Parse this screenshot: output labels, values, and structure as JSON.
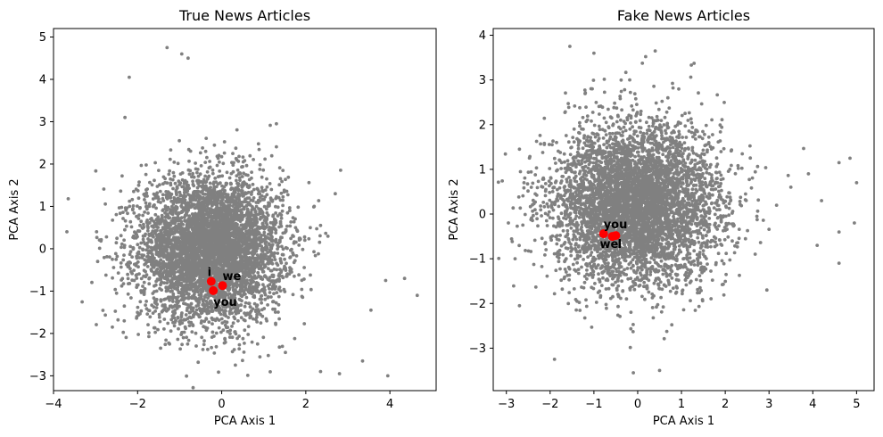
{
  "chart_data": [
    {
      "type": "scatter",
      "title": "True News Articles",
      "xlabel": "PCA Axis 1",
      "ylabel": "PCA Axis 2",
      "xlim": [
        -4,
        5.1
      ],
      "ylim": [
        -3.35,
        5.2
      ],
      "xticks": [
        -4,
        -2,
        0,
        2,
        4
      ],
      "yticks": [
        -3,
        -2,
        -1,
        0,
        1,
        2,
        3,
        4,
        5
      ],
      "grid": false,
      "cloud": {
        "name": "articles",
        "color": "#808080",
        "center": [
          -0.25,
          0.0
        ],
        "spread": [
          0.85,
          0.85
        ],
        "count": 5200,
        "points": [
          [
            -3.65,
            1.18
          ],
          [
            -2.95,
            -0.3
          ],
          [
            -2.6,
            -1.85
          ],
          [
            -2.3,
            3.1
          ],
          [
            -2.2,
            4.05
          ],
          [
            -1.3,
            4.75
          ],
          [
            -0.95,
            4.6
          ],
          [
            -0.8,
            4.5
          ],
          [
            1.3,
            2.95
          ],
          [
            2.35,
            -2.9
          ],
          [
            2.8,
            -2.95
          ],
          [
            3.35,
            -2.65
          ],
          [
            3.95,
            -3.0
          ],
          [
            3.55,
            -1.45
          ],
          [
            4.35,
            -0.7
          ],
          [
            4.65,
            -1.1
          ],
          [
            3.9,
            -0.75
          ],
          [
            2.7,
            1.3
          ],
          [
            2.35,
            0.55
          ],
          [
            2.2,
            1.0
          ]
        ]
      },
      "highlighted": {
        "color": "#ff0000",
        "points": [
          {
            "label": "i",
            "x": -0.25,
            "y": -0.77
          },
          {
            "label": "we",
            "x": 0.02,
            "y": -0.87
          },
          {
            "label": "you",
            "x": -0.2,
            "y": -0.99
          }
        ]
      }
    },
    {
      "type": "scatter",
      "title": "Fake News Articles",
      "xlabel": "PCA Axis 1",
      "ylabel": "PCA Axis 2",
      "xlim": [
        -3.3,
        5.4
      ],
      "ylim": [
        -3.95,
        4.15
      ],
      "xticks": [
        -3,
        -2,
        -1,
        0,
        1,
        2,
        3,
        4,
        5
      ],
      "yticks": [
        -3,
        -2,
        -1,
        0,
        1,
        2,
        3,
        4
      ],
      "grid": false,
      "cloud": {
        "name": "articles",
        "color": "#808080",
        "center": [
          -0.05,
          0.2
        ],
        "spread": [
          0.95,
          0.9
        ],
        "count": 5200,
        "points": [
          [
            -2.8,
            -1.0
          ],
          [
            -2.7,
            -2.05
          ],
          [
            -1.9,
            -3.25
          ],
          [
            -1.55,
            3.75
          ],
          [
            -1.0,
            3.6
          ],
          [
            0.4,
            3.65
          ],
          [
            -0.1,
            -3.55
          ],
          [
            0.5,
            -3.5
          ],
          [
            4.85,
            1.25
          ],
          [
            4.6,
            1.15
          ],
          [
            5.0,
            0.7
          ],
          [
            4.6,
            -1.1
          ],
          [
            4.1,
            -0.7
          ],
          [
            4.95,
            -0.2
          ],
          [
            4.6,
            -0.4
          ],
          [
            3.9,
            0.9
          ],
          [
            3.5,
            0.6
          ],
          [
            4.2,
            0.3
          ],
          [
            2.95,
            -1.7
          ]
        ]
      },
      "highlighted": {
        "color": "#ff0000",
        "points": [
          {
            "label": "you",
            "x": -0.78,
            "y": -0.44
          },
          {
            "label": "we",
            "x": -0.58,
            "y": -0.5
          },
          {
            "label": "I",
            "x": -0.5,
            "y": -0.48
          }
        ]
      }
    }
  ]
}
